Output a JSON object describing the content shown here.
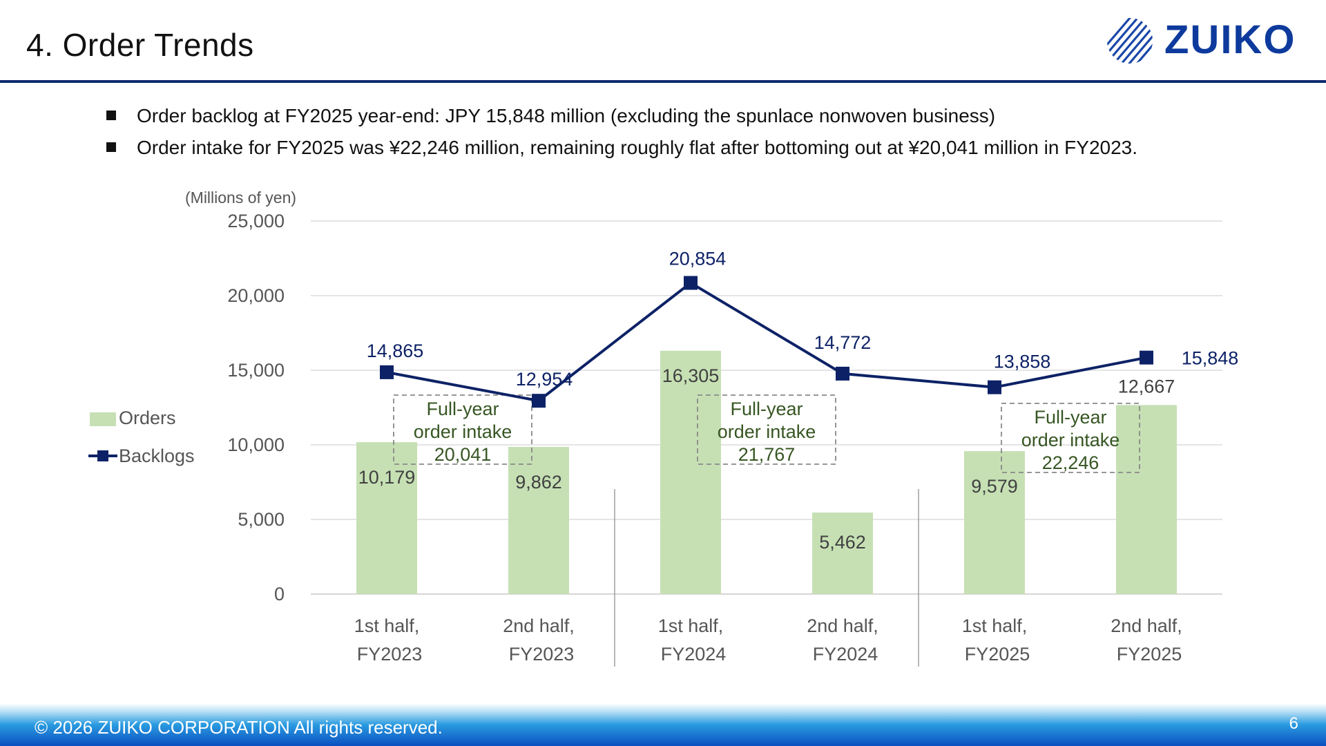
{
  "slide": {
    "title": "4. Order Trends",
    "bullets": [
      "Order backlog at FY2025 year-end: JPY 15,848 million (excluding the spunlace nonwoven business)",
      "Order intake for FY2025 was ¥22,246 million, remaining roughly flat after bottoming out at ¥20,041 million in FY2023."
    ],
    "logo_text": "ZUIKO",
    "footer": "© 2026 ZUIKO CORPORATION All rights reserved.",
    "page_number": "6"
  },
  "colors": {
    "bars": "#c6e0b4",
    "line": "#0d2266",
    "intake_text": "#375623",
    "brand": "#0d3a9c"
  },
  "chart_data": {
    "type": "bar",
    "unit_label": "(Millions of yen)",
    "categories": [
      [
        "1st half,",
        "FY2023"
      ],
      [
        "2nd half,",
        "FY2023"
      ],
      [
        "1st half,",
        "FY2024"
      ],
      [
        "2nd half,",
        "FY2024"
      ],
      [
        "1st half,",
        "FY2025"
      ],
      [
        "2nd half,",
        "FY2025"
      ]
    ],
    "series": [
      {
        "name": "Orders",
        "type": "bar",
        "values": [
          10179,
          9862,
          16305,
          5462,
          9579,
          12667
        ],
        "labels": [
          "10,179",
          "9,862",
          "16,305",
          "5,462",
          "9,579",
          "12,667"
        ]
      },
      {
        "name": "Backlogs",
        "type": "line",
        "values": [
          14865,
          12954,
          20854,
          14772,
          13858,
          15848
        ],
        "labels": [
          "14,865",
          "12,954",
          "20,854",
          "14,772",
          "13,858",
          "15,848"
        ]
      }
    ],
    "ylim": [
      0,
      25000
    ],
    "yticks": [
      {
        "value": 0,
        "label": "0"
      },
      {
        "value": 5000,
        "label": "5,000"
      },
      {
        "value": 10000,
        "label": "10,000"
      },
      {
        "value": 15000,
        "label": "15,000"
      },
      {
        "value": 20000,
        "label": "20,000"
      },
      {
        "value": 25000,
        "label": "25,000"
      }
    ],
    "grid": true,
    "legend_position": "left",
    "annotations": [
      {
        "lines": [
          "Full-year",
          "order intake",
          "20,041"
        ],
        "year": "FY2023"
      },
      {
        "lines": [
          "Full-year",
          "order intake",
          "21,767"
        ],
        "year": "FY2024"
      },
      {
        "lines": [
          "Full-year",
          "order intake",
          "22,246"
        ],
        "year": "FY2025"
      }
    ]
  }
}
